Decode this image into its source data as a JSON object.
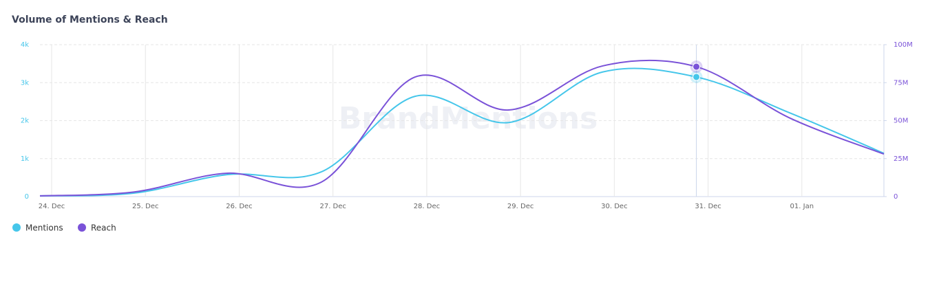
{
  "chart_data": {
    "type": "line",
    "title": "Volume of Mentions & Reach",
    "watermark": "BrandMentions",
    "x": [
      -0.125,
      0.875,
      1.875,
      2.875,
      3.875,
      4.875,
      5.875,
      6.875,
      7.875,
      8.875
    ],
    "xlim": [
      -0.125,
      8.875
    ],
    "xticks": [
      {
        "value": 0,
        "label": "24. Dec"
      },
      {
        "value": 1,
        "label": "25. Dec"
      },
      {
        "value": 2,
        "label": "26. Dec"
      },
      {
        "value": 3,
        "label": "27. Dec"
      },
      {
        "value": 4,
        "label": "28. Dec"
      },
      {
        "value": 5,
        "label": "29. Dec"
      },
      {
        "value": 6,
        "label": "30. Dec"
      },
      {
        "value": 7,
        "label": "31. Dec"
      },
      {
        "value": 8,
        "label": "01. Jan"
      }
    ],
    "ylim": [
      0,
      4000
    ],
    "yticks": [
      0,
      {
        "value": 1000,
        "label": "1k"
      },
      {
        "value": 2000,
        "label": "2k"
      },
      {
        "value": 3000,
        "label": "3k"
      },
      {
        "value": 4000,
        "label": "4k"
      }
    ],
    "y2lim": [
      0,
      100000000
    ],
    "y2ticks": [
      0,
      {
        "value": 25000000,
        "label": "25M"
      },
      {
        "value": 50000000,
        "label": "50M"
      },
      {
        "value": 75000000,
        "label": "75M"
      },
      {
        "value": 100000000,
        "label": "100M"
      }
    ],
    "grid": true,
    "legend": "bottom-left",
    "series": [
      {
        "name": "Mentions",
        "color": "#45c6ea",
        "values": [
          20,
          90,
          580,
          650,
          2640,
          1950,
          3280,
          3150,
          2200,
          1140
        ]
      },
      {
        "name": "Reach",
        "color": "#7a52d8",
        "axis": "y2",
        "values": [
          500000,
          3000000,
          15400000,
          9500000,
          78700000,
          57000000,
          86000000,
          85500000,
          51600000,
          28000000
        ]
      }
    ]
  }
}
